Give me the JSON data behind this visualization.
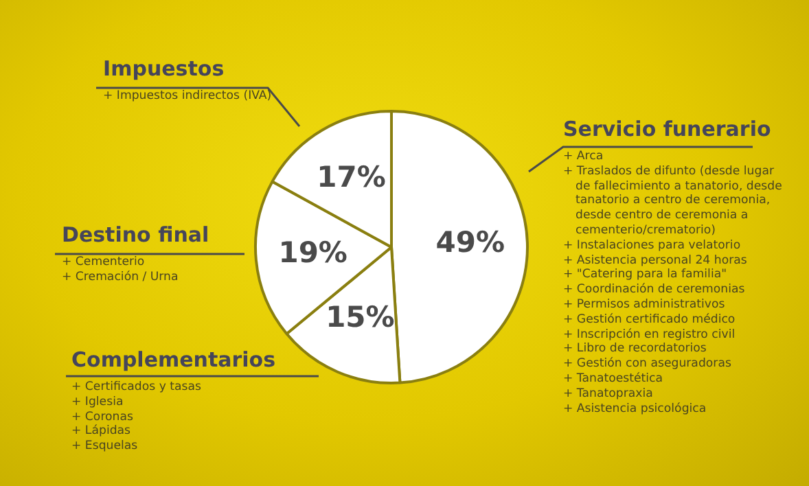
{
  "chart_data": {
    "type": "pie",
    "categories": [
      "Servicio funerario",
      "Complementarios",
      "Destino final",
      "Impuestos"
    ],
    "values": [
      49,
      15,
      19,
      17
    ],
    "colors": [
      "#ffffff",
      "#ffffff",
      "#ffffff",
      "#ffffff"
    ],
    "value_labels": [
      "49%",
      "15%",
      "19%",
      "17%"
    ],
    "legend": false,
    "annotations": [
      "+ Arca\n+ Traslados de difunto (desde lugar de fallecimiento a tanatorio, desde tanatorio a centro de ceremonia, desde centro de ceremonia a cementerio/crematorio)\n+ Instalaciones para velatorio\n+ Asistencia personal 24 horas\n+ \"Catering para la familia\"\n+ Coordinación de ceremonias\n+ Permisos administrativos\n+ Gestión certificado médico\n+ Inscripción en registro civil\n+ Libro de recordatorios\n+ Gestión con aseguradoras\n+ Tanatoestética\n+ Tanatopraxia\n+ Asistencia psicológica",
      "+ Certificados y tasas\n+ Iglesia\n+ Coronas\n+ Lápidas\n+ Esquelas",
      "+ Cementerio\n+ Cremación / Urna",
      "+ Impuestos indirectos (IVA)"
    ]
  }
}
